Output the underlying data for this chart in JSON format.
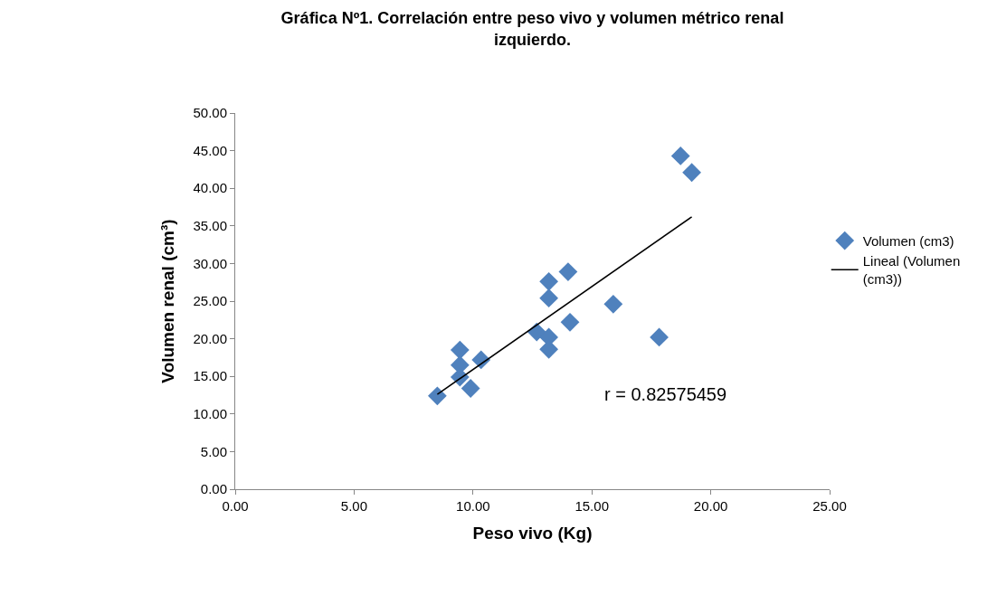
{
  "chart_data": {
    "type": "scatter",
    "title": "Gráfica Nº1. Correlación entre peso vivo y volumen métrico renal izquierdo.",
    "xlabel": "Peso vivo (Kg)",
    "ylabel": "Volumen renal (cm³)",
    "series": [
      {
        "name": "Volumen (cm3)",
        "color": "#4f81bd",
        "marker": "diamond",
        "x": [
          8.5,
          9.45,
          9.45,
          9.45,
          9.9,
          10.34,
          12.68,
          13.19,
          13.19,
          13.19,
          13.19,
          14.0,
          14.08,
          15.9,
          17.83,
          18.73,
          19.2
        ],
        "values": [
          12.4,
          18.5,
          16.5,
          14.9,
          13.4,
          17.2,
          20.9,
          20.2,
          18.6,
          25.4,
          27.6,
          28.9,
          22.2,
          24.6,
          20.2,
          44.3,
          42.1
        ]
      },
      {
        "name": "Lineal (Volumen (cm3))",
        "type": "line",
        "color": "#000000",
        "marker": "none",
        "line_style": "solid",
        "x": [
          8.5,
          19.2
        ],
        "values": [
          12.6,
          36.2
        ]
      }
    ],
    "xlim": [
      0,
      25
    ],
    "ylim": [
      0,
      50
    ],
    "xticks": [
      {
        "value": 0,
        "label": "0.00"
      },
      {
        "value": 5,
        "label": "5.00"
      },
      {
        "value": 10,
        "label": "10.00"
      },
      {
        "value": 15,
        "label": "15.00"
      },
      {
        "value": 20,
        "label": "20.00"
      },
      {
        "value": 25,
        "label": "25.00"
      }
    ],
    "yticks": [
      {
        "value": 0,
        "label": "0.00"
      },
      {
        "value": 5,
        "label": "5.00"
      },
      {
        "value": 10,
        "label": "10.00"
      },
      {
        "value": 15,
        "label": "15.00"
      },
      {
        "value": 20,
        "label": "20.00"
      },
      {
        "value": 25,
        "label": "25.00"
      },
      {
        "value": 30,
        "label": "30.00"
      },
      {
        "value": 35,
        "label": "35.00"
      },
      {
        "value": 40,
        "label": "40.00"
      },
      {
        "value": 45,
        "label": "45.00"
      },
      {
        "value": 50,
        "label": "50.00"
      }
    ],
    "annotations": [
      "r = 0.82575459"
    ],
    "legend": "right"
  }
}
